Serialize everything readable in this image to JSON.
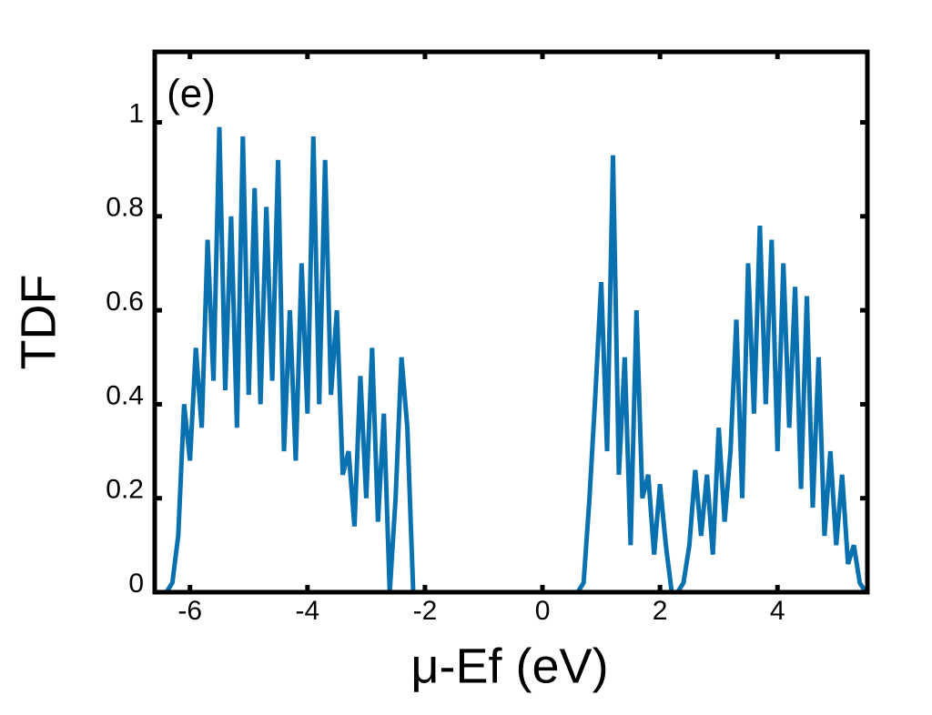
{
  "chart_data": {
    "type": "line",
    "annotation": "(e)",
    "xlabel": "μ-Ef (eV)",
    "ylabel": "TDF",
    "xlim": [
      -6.6,
      5.53
    ],
    "ylim": [
      0,
      1.15
    ],
    "xticks": [
      -6,
      -4,
      -2,
      0,
      2,
      4
    ],
    "yticks": [
      0,
      0.2,
      0.4,
      0.6,
      0.8,
      1
    ],
    "x": [
      -6.6,
      -6.5,
      -6.4,
      -6.3,
      -6.2,
      -6.1,
      -6.0,
      -5.9,
      -5.8,
      -5.7,
      -5.6,
      -5.5,
      -5.4,
      -5.3,
      -5.2,
      -5.1,
      -5.0,
      -4.9,
      -4.8,
      -4.7,
      -4.6,
      -4.5,
      -4.4,
      -4.3,
      -4.2,
      -4.1,
      -4.0,
      -3.9,
      -3.8,
      -3.7,
      -3.6,
      -3.5,
      -3.4,
      -3.3,
      -3.2,
      -3.1,
      -3.0,
      -2.9,
      -2.8,
      -2.7,
      -2.6,
      -2.5,
      -2.4,
      -2.3,
      -2.2,
      -2.1,
      0.6,
      0.7,
      0.8,
      0.9,
      1.0,
      1.1,
      1.2,
      1.3,
      1.4,
      1.5,
      1.6,
      1.7,
      1.8,
      1.9,
      2.0,
      2.1,
      2.2,
      2.3,
      2.4,
      2.5,
      2.6,
      2.7,
      2.8,
      2.9,
      3.0,
      3.1,
      3.2,
      3.3,
      3.4,
      3.5,
      3.6,
      3.7,
      3.8,
      3.9,
      4.0,
      4.1,
      4.2,
      4.3,
      4.4,
      4.5,
      4.6,
      4.7,
      4.8,
      4.9,
      5.0,
      5.1,
      5.2,
      5.3,
      5.4,
      5.5
    ],
    "series": [
      {
        "color": "#0a71b0",
        "values": [
          0,
          0,
          0,
          0.02,
          0.12,
          0.4,
          0.28,
          0.52,
          0.35,
          0.75,
          0.45,
          0.99,
          0.43,
          0.8,
          0.35,
          0.97,
          0.42,
          0.86,
          0.4,
          0.82,
          0.45,
          0.92,
          0.3,
          0.6,
          0.28,
          0.7,
          0.38,
          0.97,
          0.4,
          0.92,
          0.42,
          0.6,
          0.25,
          0.3,
          0.14,
          0.46,
          0.2,
          0.52,
          0.15,
          0.38,
          0,
          0.2,
          0.5,
          0.35,
          0,
          0,
          0,
          0.02,
          0.2,
          0.42,
          0.66,
          0.3,
          0.93,
          0.25,
          0.5,
          0.1,
          0.6,
          0.2,
          0.25,
          0.08,
          0.23,
          0.1,
          0,
          0,
          0.02,
          0.1,
          0.26,
          0.12,
          0.25,
          0.08,
          0.35,
          0.15,
          0.3,
          0.58,
          0.2,
          0.7,
          0.38,
          0.78,
          0.4,
          0.75,
          0.3,
          0.7,
          0.35,
          0.65,
          0.22,
          0.63,
          0.18,
          0.5,
          0.12,
          0.3,
          0.1,
          0.25,
          0.06,
          0.1,
          0.02,
          0
        ]
      }
    ]
  }
}
